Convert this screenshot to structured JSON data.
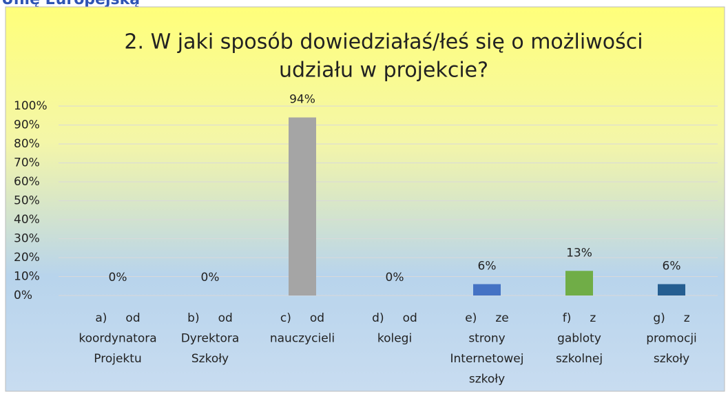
{
  "header": "Unię Europejską",
  "chart_data": {
    "type": "bar",
    "title": [
      "2. W jaki sposób dowiedziałaś/łeś się o możliwości",
      "udziału w projekcie?"
    ],
    "categories": [
      [
        "a)     od",
        "koordynatora",
        "Projektu"
      ],
      [
        "b)     od",
        "Dyrektora",
        "Szkoły"
      ],
      [
        "c)     od",
        "nauczycieli"
      ],
      [
        "d)     od",
        "kolegi"
      ],
      [
        "e)     ze",
        "strony",
        "Internetowej",
        "szkoły"
      ],
      [
        "f)     z",
        "gabloty",
        "szkolnej"
      ],
      [
        "g)     z",
        "promocji",
        "szkoły"
      ]
    ],
    "values": [
      0,
      0,
      94,
      0,
      6,
      13,
      6
    ],
    "value_labels": [
      "0%",
      "0%",
      "94%",
      "0%",
      "6%",
      "13%",
      "6%"
    ],
    "colors": [
      "#5b9bd5",
      "#ed7d31",
      "#a5a5a5",
      "#ffc000",
      "#4472c4",
      "#70ad47",
      "#255e91"
    ],
    "ylim": [
      0,
      100
    ],
    "yticks": [
      {
        "value": 0,
        "label": "0%"
      },
      {
        "value": 10,
        "label": "10%"
      },
      {
        "value": 20,
        "label": "20%"
      },
      {
        "value": 30,
        "label": "30%"
      },
      {
        "value": 40,
        "label": "40%"
      },
      {
        "value": 50,
        "label": "50%"
      },
      {
        "value": 60,
        "label": "60%"
      },
      {
        "value": 70,
        "label": "70%"
      },
      {
        "value": 80,
        "label": "80%"
      },
      {
        "value": 90,
        "label": "90%"
      },
      {
        "value": 100,
        "label": "100%"
      }
    ],
    "grid": true
  }
}
